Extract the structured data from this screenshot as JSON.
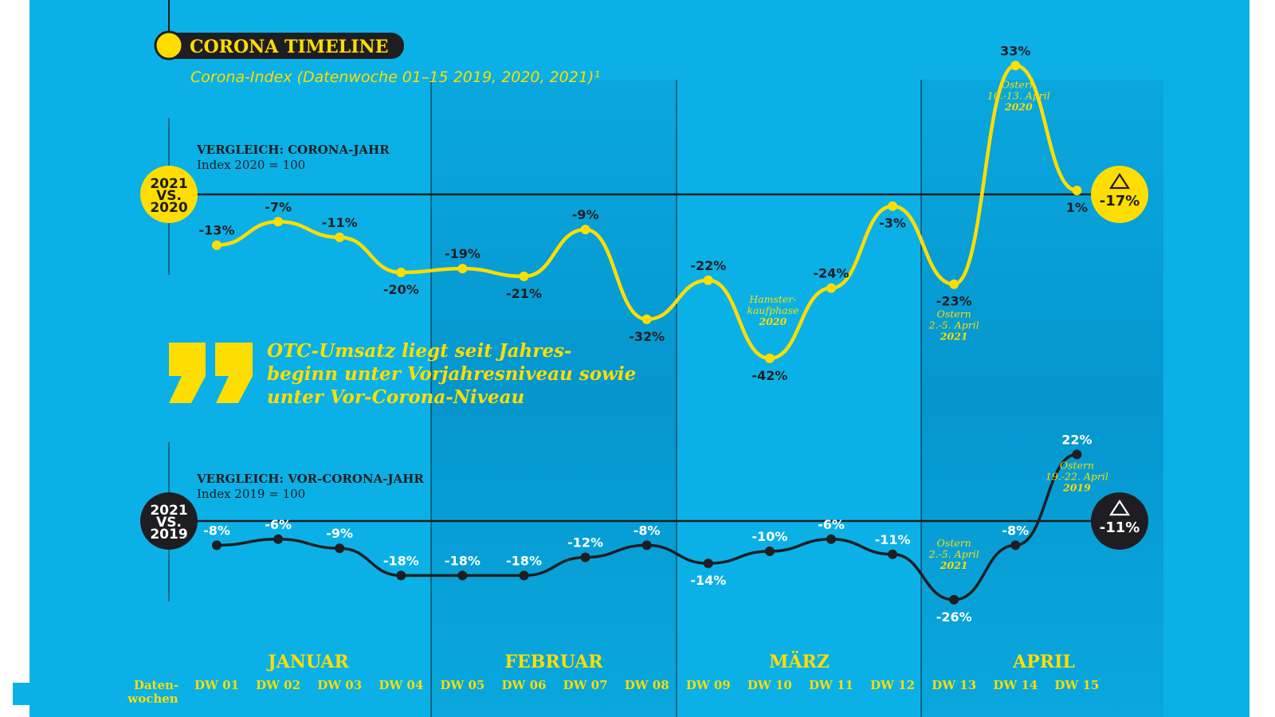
{
  "title": "CORONA TIMELINE",
  "subtitle": "Corona-Index (Datenwoche 01–15 2019, 2020, 2021)¹",
  "quote": [
    "OTC-Umsatz liegt seit Jahres-",
    "beginn unter Vorjahresniveau sowie",
    "unter Vor-Corona-Niveau"
  ],
  "x_axis_title": [
    "Daten-",
    "wochen"
  ],
  "months": [
    "JANUAR",
    "FEBRUAR",
    "MÄRZ",
    "APRIL"
  ],
  "colors": {
    "background": "#0bb1e6",
    "band": "#079fd6",
    "yellow": "#fedd00",
    "dark": "#1e1e22",
    "white": "#ffffff"
  },
  "chart_data": [
    {
      "type": "line",
      "heading": "VERGLEICH: CORONA-JAHR",
      "index_note": "Index 2020 = 100",
      "badge": [
        "2021",
        "VS.",
        "2020"
      ],
      "total_label": "-17%",
      "categories": [
        "DW 01",
        "DW 02",
        "DW 03",
        "DW 04",
        "DW 05",
        "DW 06",
        "DW 07",
        "DW 08",
        "DW 09",
        "DW 10",
        "DW 11",
        "DW 12",
        "DW 13",
        "DW 14",
        "DW 15"
      ],
      "values": [
        -13,
        -7,
        -11,
        -20,
        -19,
        -21,
        -9,
        -32,
        -22,
        -42,
        -24,
        -3,
        -23,
        33,
        1
      ],
      "value_labels": [
        "-13%",
        "-7%",
        "-11%",
        "-20%",
        "-19%",
        "-21%",
        "-9%",
        "-32%",
        "-22%",
        "-42%",
        "-24%",
        "-3%",
        "-23%",
        "33%",
        "1%"
      ],
      "ylim": [
        -45,
        35
      ],
      "annotations": [
        {
          "week_index": 9,
          "lines": [
            "Hamster-",
            "kaufphase"
          ],
          "year": "2020"
        },
        {
          "week_index": 12,
          "lines": [
            "Ostern",
            "2.-5. April"
          ],
          "year": "2021"
        },
        {
          "week_index": 13,
          "lines": [
            "Ostern",
            "10.-13. April"
          ],
          "year": "2020"
        }
      ]
    },
    {
      "type": "line",
      "heading": "VERGLEICH: VOR-CORONA-JAHR",
      "index_note": "Index 2019 = 100",
      "badge": [
        "2021",
        "VS.",
        "2019"
      ],
      "total_label": "-11%",
      "categories": [
        "DW 01",
        "DW 02",
        "DW 03",
        "DW 04",
        "DW 05",
        "DW 06",
        "DW 07",
        "DW 08",
        "DW 09",
        "DW 10",
        "DW 11",
        "DW 12",
        "DW 13",
        "DW 14",
        "DW 15"
      ],
      "values": [
        -8,
        -6,
        -9,
        -18,
        -18,
        -18,
        -12,
        -8,
        -14,
        -10,
        -6,
        -11,
        -26,
        -8,
        22
      ],
      "value_labels": [
        "-8%",
        "-6%",
        "-9%",
        "-18%",
        "-18%",
        "-18%",
        "-12%",
        "-8%",
        "-14%",
        "-10%",
        "-6%",
        "-11%",
        "-26%",
        "-8%",
        "22%"
      ],
      "ylim": [
        -28,
        25
      ],
      "annotations": [
        {
          "week_index": 12,
          "lines": [
            "Ostern",
            "2.-5. April"
          ],
          "year": "2021"
        },
        {
          "week_index": 14,
          "lines": [
            "Ostern",
            "19.-22. April"
          ],
          "year": "2019"
        }
      ]
    }
  ]
}
